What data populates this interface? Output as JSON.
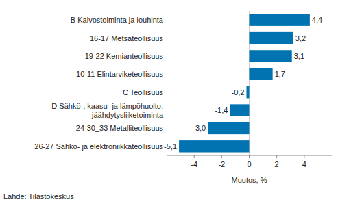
{
  "chart_data": {
    "type": "bar",
    "orientation": "horizontal",
    "categories": [
      "B Kaivostoiminta ja louhinta",
      "16-17 Metsäteollisuus",
      "19-22 Kemianteollisuus",
      "10-11 Elintarviketeollisuus",
      "C Teollisuus",
      "D Sähkö-, kaasu- ja lämpöhuolto, jäähdytysliiketoiminta",
      "24-30_33 Metalliteollisuus",
      "26-27 Sähkö- ja elektroniikkateollisuus"
    ],
    "values": [
      4.4,
      3.2,
      3.1,
      1.7,
      -0.2,
      -1.4,
      -3.0,
      -5.1
    ],
    "value_labels": [
      "4,4",
      "3,2",
      "3,1",
      "1,7",
      "-0,2",
      "-1,4",
      "-3,0",
      "-5,1"
    ],
    "data_labels": true,
    "color": "#0073b0",
    "xlim": [
      -6,
      6
    ],
    "xticks": [
      -4,
      -2,
      0,
      2,
      4
    ],
    "x_label": "Muutos, %",
    "source": "Lähde: Tilastokeskus",
    "grid": false
  }
}
